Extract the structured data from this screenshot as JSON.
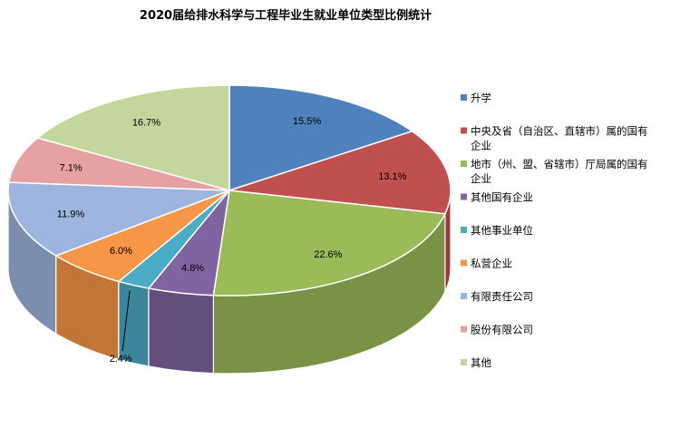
{
  "chart_data": {
    "type": "pie",
    "title": "2020届给排水科学与工程毕业生就业单位类型比例统计",
    "unit": "%",
    "legend_position": "right",
    "slices": [
      {
        "label": "升学",
        "value": 15.5,
        "display": "15.5%",
        "color": "#4f81bd"
      },
      {
        "label": "中央及省（自治区、直辖市）属的国有企业",
        "value": 13.1,
        "display": "13.1%",
        "color": "#c0504d"
      },
      {
        "label": "地市（州、盟、省辖市）厅局属的国有企业",
        "value": 22.6,
        "display": "22.6%",
        "color": "#9bbb59"
      },
      {
        "label": "其他国有企业",
        "value": 4.8,
        "display": "4.8%",
        "color": "#8064a2"
      },
      {
        "label": "其他事业单位",
        "value": 2.4,
        "display": "2.4%",
        "color": "#4bacc6"
      },
      {
        "label": "私营企业",
        "value": 6.0,
        "display": "6.0%",
        "color": "#f79646"
      },
      {
        "label": "有限责任公司",
        "value": 11.9,
        "display": "11.9%",
        "color": "#9eb6df"
      },
      {
        "label": "股份有限公司",
        "value": 7.1,
        "display": "7.1%",
        "color": "#e6a2a2"
      },
      {
        "label": "其他",
        "value": 16.7,
        "display": "16.7%",
        "color": "#c3d69b"
      }
    ]
  }
}
